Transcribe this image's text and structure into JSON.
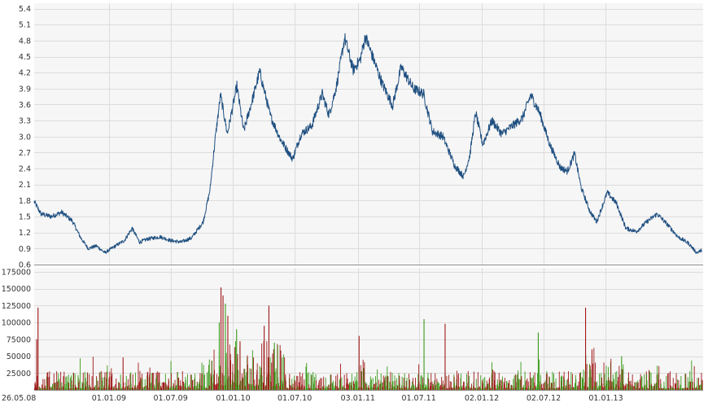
{
  "chart_data": [
    {
      "type": "line",
      "title": "",
      "xlabel": "",
      "ylabel": "",
      "ylim": [
        0.6,
        5.5
      ],
      "y_ticks": [
        "0.6",
        "0.9",
        "1.2",
        "1.5",
        "1.8",
        "2.1",
        "2.4",
        "2.7",
        "3.0",
        "3.3",
        "3.6",
        "3.9",
        "4.2",
        "4.5",
        "4.8",
        "5.1",
        "5.4"
      ],
      "grid": true,
      "legend": "none",
      "line_color": "#1f4f80",
      "series": [
        {
          "name": "",
          "points": [
            [
              "2008-05-26",
              1.78
            ],
            [
              "2008-06-15",
              1.55
            ],
            [
              "2008-07-15",
              1.5
            ],
            [
              "2008-08-15",
              1.58
            ],
            [
              "2008-09-15",
              1.42
            ],
            [
              "2008-10-10",
              1.1
            ],
            [
              "2008-11-01",
              0.9
            ],
            [
              "2008-11-25",
              0.95
            ],
            [
              "2008-12-20",
              0.82
            ],
            [
              "2009-01-15",
              0.93
            ],
            [
              "2009-02-15",
              1.05
            ],
            [
              "2009-03-10",
              1.28
            ],
            [
              "2009-04-01",
              1.02
            ],
            [
              "2009-04-25",
              1.08
            ],
            [
              "2009-06-01",
              1.12
            ],
            [
              "2009-07-01",
              1.05
            ],
            [
              "2009-08-01",
              1.02
            ],
            [
              "2009-09-01",
              1.1
            ],
            [
              "2009-10-05",
              1.4
            ],
            [
              "2009-10-25",
              2.0
            ],
            [
              "2009-11-10",
              3.0
            ],
            [
              "2009-11-25",
              3.78
            ],
            [
              "2009-12-15",
              3.05
            ],
            [
              "2010-01-12",
              3.95
            ],
            [
              "2010-02-01",
              3.1
            ],
            [
              "2010-03-01",
              3.75
            ],
            [
              "2010-03-20",
              4.22
            ],
            [
              "2010-04-20",
              3.4
            ],
            [
              "2010-05-20",
              2.95
            ],
            [
              "2010-06-25",
              2.58
            ],
            [
              "2010-07-20",
              3.05
            ],
            [
              "2010-08-20",
              3.2
            ],
            [
              "2010-09-20",
              3.8
            ],
            [
              "2010-10-10",
              3.4
            ],
            [
              "2010-11-01",
              3.95
            ],
            [
              "2010-11-25",
              4.85
            ],
            [
              "2010-12-20",
              4.25
            ],
            [
              "2011-01-10",
              4.45
            ],
            [
              "2011-01-25",
              4.88
            ],
            [
              "2011-02-15",
              4.5
            ],
            [
              "2011-03-15",
              4.0
            ],
            [
              "2011-04-15",
              3.58
            ],
            [
              "2011-05-10",
              4.3
            ],
            [
              "2011-06-15",
              3.9
            ],
            [
              "2011-07-15",
              3.8
            ],
            [
              "2011-08-10",
              3.1
            ],
            [
              "2011-09-10",
              3.0
            ],
            [
              "2011-10-15",
              2.45
            ],
            [
              "2011-11-10",
              2.25
            ],
            [
              "2011-11-28",
              2.65
            ],
            [
              "2011-12-15",
              3.45
            ],
            [
              "2012-01-05",
              2.85
            ],
            [
              "2012-02-01",
              3.3
            ],
            [
              "2012-03-01",
              3.05
            ],
            [
              "2012-04-01",
              3.2
            ],
            [
              "2012-05-01",
              3.35
            ],
            [
              "2012-05-25",
              3.78
            ],
            [
              "2012-06-20",
              3.45
            ],
            [
              "2012-07-20",
              2.85
            ],
            [
              "2012-08-20",
              2.42
            ],
            [
              "2012-09-10",
              2.35
            ],
            [
              "2012-10-01",
              2.68
            ],
            [
              "2012-10-20",
              2.05
            ],
            [
              "2012-11-15",
              1.6
            ],
            [
              "2012-12-05",
              1.4
            ],
            [
              "2013-01-05",
              1.95
            ],
            [
              "2013-02-01",
              1.75
            ],
            [
              "2013-03-01",
              1.28
            ],
            [
              "2013-04-01",
              1.22
            ],
            [
              "2013-05-01",
              1.4
            ],
            [
              "2013-06-01",
              1.55
            ],
            [
              "2013-07-01",
              1.35
            ],
            [
              "2013-08-01",
              1.12
            ],
            [
              "2013-09-01",
              1.0
            ],
            [
              "2013-09-25",
              0.82
            ],
            [
              "2013-10-10",
              0.87
            ]
          ]
        }
      ]
    },
    {
      "type": "bar",
      "title": "",
      "xlabel": "",
      "ylabel": "",
      "ylim": [
        0,
        175000
      ],
      "y_ticks": [
        "25000",
        "50000",
        "75000",
        "100000",
        "125000",
        "150000",
        "175000"
      ],
      "grid": true,
      "legend": "none",
      "up_color": "#3a9a1a",
      "down_color": "#a01818",
      "x_ticks": [
        [
          "2008-05-26",
          "26.05.08"
        ],
        [
          "2009-01-01",
          "01.01.09"
        ],
        [
          "2009-07-01",
          "01.07.09"
        ],
        [
          "2010-01-01",
          "01.01.10"
        ],
        [
          "2010-07-01",
          "01.07.10"
        ],
        [
          "2011-01-03",
          "03.01.11"
        ],
        [
          "2011-07-01",
          "01.07.11"
        ],
        [
          "2012-01-02",
          "02.01.12"
        ],
        [
          "2012-07-02",
          "02.07.12"
        ],
        [
          "2013-01-01",
          "01.01.13"
        ]
      ],
      "x_range": [
        "2008-05-26",
        "2013-10-14"
      ],
      "spikes": [
        [
          "2008-06-05",
          122000,
          "down"
        ],
        [
          "2008-06-01",
          75000,
          "down"
        ],
        [
          "2009-02-10",
          48000,
          "down"
        ],
        [
          "2009-11-25",
          152000,
          "down"
        ],
        [
          "2009-12-01",
          140000,
          "down"
        ],
        [
          "2009-12-08",
          128000,
          "up"
        ],
        [
          "2009-11-20",
          100000,
          "up"
        ],
        [
          "2009-12-15",
          110000,
          "down"
        ],
        [
          "2010-01-10",
          90000,
          "up"
        ],
        [
          "2010-01-20",
          72000,
          "down"
        ],
        [
          "2010-04-01",
          95000,
          "down"
        ],
        [
          "2010-04-15",
          125000,
          "down"
        ],
        [
          "2010-05-01",
          70000,
          "up"
        ],
        [
          "2011-01-05",
          80000,
          "down"
        ],
        [
          "2011-07-15",
          105000,
          "up"
        ],
        [
          "2011-09-15",
          98000,
          "down"
        ],
        [
          "2012-06-15",
          85000,
          "up"
        ],
        [
          "2012-11-01",
          122000,
          "down"
        ],
        [
          "2012-11-20",
          60000,
          "down"
        ],
        [
          "2013-02-15",
          50000,
          "up"
        ]
      ]
    }
  ]
}
